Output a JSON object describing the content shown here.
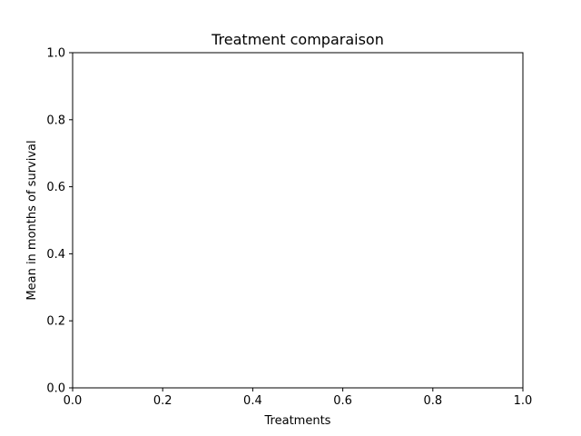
{
  "chart_data": {
    "type": "bar",
    "title": "Treatment comparaison",
    "xlabel": "Treatments",
    "ylabel": "Mean in months of survival",
    "xlim": [
      0.0,
      1.0
    ],
    "ylim": [
      0.0,
      1.0
    ],
    "x_ticks": [
      "0.0",
      "0.2",
      "0.4",
      "0.6",
      "0.8",
      "1.0"
    ],
    "y_ticks": [
      "0.0",
      "0.2",
      "0.4",
      "0.6",
      "0.8",
      "1.0"
    ],
    "grid": false,
    "series": []
  },
  "colors": {
    "axes": "#000000",
    "background": "#ffffff"
  }
}
